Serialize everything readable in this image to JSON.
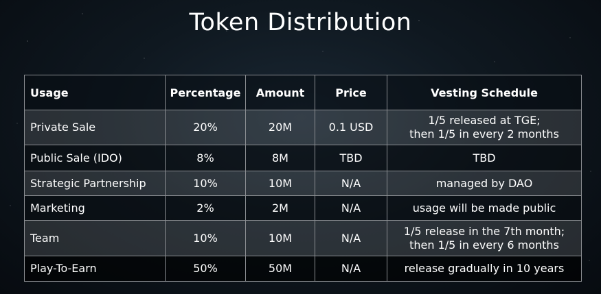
{
  "title": "Token Distribution",
  "table": {
    "headers": {
      "usage": "Usage",
      "percentage": "Percentage",
      "amount": "Amount",
      "price": "Price",
      "vesting": "Vesting Schedule"
    },
    "rows": [
      {
        "usage": "Private Sale",
        "percentage": "20%",
        "amount": "20M",
        "price": "0.1 USD",
        "vesting": "1/5 released at TGE;\nthen 1/5 in every 2 months"
      },
      {
        "usage": "Public Sale (IDO)",
        "percentage": "8%",
        "amount": "8M",
        "price": "TBD",
        "vesting": "TBD"
      },
      {
        "usage": "Strategic Partnership",
        "percentage": "10%",
        "amount": "10M",
        "price": "N/A",
        "vesting": "managed by DAO"
      },
      {
        "usage": "Marketing",
        "percentage": "2%",
        "amount": "2M",
        "price": "N/A",
        "vesting": "usage will be made public"
      },
      {
        "usage": "Team",
        "percentage": "10%",
        "amount": "10M",
        "price": "N/A",
        "vesting": "1/5 release in the 7th month;\nthen 1/5 in every 6 months"
      },
      {
        "usage": "Play-To-Earn",
        "percentage": "50%",
        "amount": "50M",
        "price": "N/A",
        "vesting": "release gradually in 10 years"
      }
    ]
  }
}
